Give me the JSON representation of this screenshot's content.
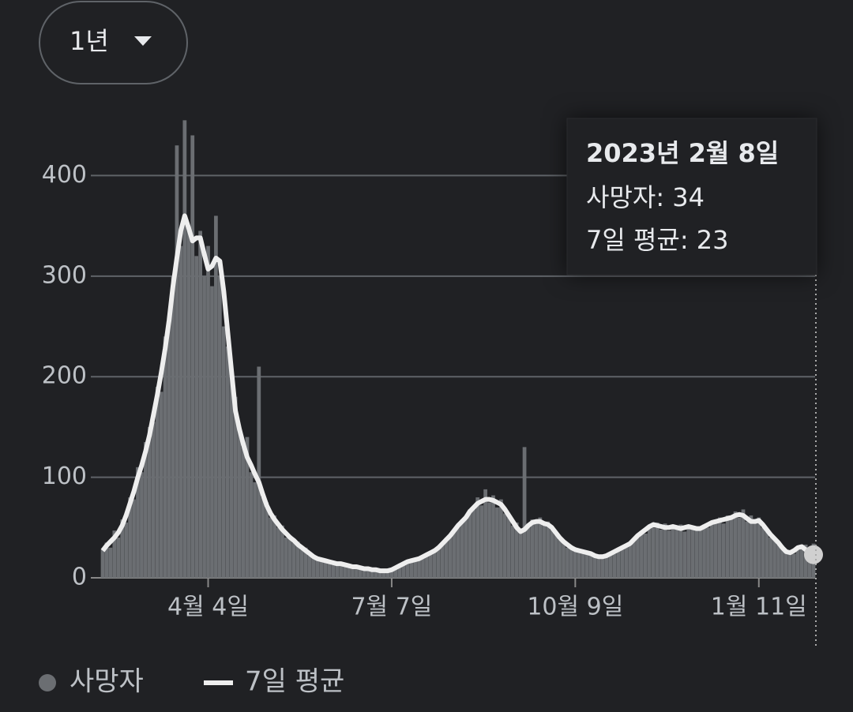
{
  "range_button": {
    "label": "1년"
  },
  "tooltip": {
    "title": "2023년 2월 8일",
    "lines": [
      "사망자: 34",
      "7일 평균: 23"
    ]
  },
  "chart_data": {
    "type": "bar",
    "categories": [
      null,
      null,
      null,
      null,
      null,
      null,
      null,
      null,
      null,
      null,
      null,
      null,
      null,
      null,
      null,
      null,
      null,
      null,
      null,
      null,
      null,
      null,
      null,
      null,
      null,
      null,
      null,
      "4월 4일",
      null,
      null,
      null,
      null,
      null,
      null,
      null,
      null,
      null,
      null,
      null,
      null,
      null,
      null,
      null,
      null,
      null,
      null,
      null,
      null,
      null,
      null,
      null,
      null,
      null,
      null,
      null,
      null,
      null,
      null,
      null,
      null,
      null,
      null,
      null,
      null,
      null,
      null,
      null,
      null,
      null,
      null,
      null,
      null,
      null,
      null,
      "7월 7일",
      null,
      null,
      null,
      null,
      null,
      null,
      null,
      null,
      null,
      null,
      null,
      null,
      null,
      null,
      null,
      null,
      null,
      null,
      null,
      null,
      null,
      null,
      null,
      null,
      null,
      null,
      null,
      null,
      null,
      null,
      null,
      null,
      null,
      null,
      null,
      null,
      null,
      null,
      null,
      null,
      null,
      null,
      null,
      null,
      null,
      null,
      "10월 9일",
      null,
      null,
      null,
      null,
      null,
      null,
      null,
      null,
      null,
      null,
      null,
      null,
      null,
      null,
      null,
      null,
      null,
      null,
      null,
      null,
      null,
      null,
      null,
      null,
      null,
      null,
      null,
      null,
      null,
      null,
      null,
      null,
      null,
      null,
      null,
      null,
      null,
      null,
      null,
      null,
      null,
      null,
      null,
      null,
      null,
      null,
      "1월 11일",
      null,
      null,
      null,
      null,
      null,
      null,
      null,
      null,
      null,
      null,
      null,
      null,
      null,
      null
    ],
    "series": [
      {
        "name": "사망자",
        "type": "bar",
        "color": "#6b6e72",
        "values": [
          28,
          35,
          30,
          47,
          40,
          58,
          55,
          80,
          78,
          110,
          105,
          135,
          150,
          155,
          190,
          185,
          240,
          260,
          300,
          430,
          330,
          455,
          350,
          440,
          320,
          345,
          300,
          330,
          290,
          360,
          300,
          250,
          230,
          200,
          180,
          150,
          130,
          140,
          105,
          95,
          210,
          80,
          75,
          60,
          62,
          50,
          52,
          40,
          42,
          35,
          36,
          28,
          30,
          22,
          23,
          18,
          20,
          16,
          17,
          14,
          15,
          13,
          14,
          12,
          12,
          10,
          11,
          9,
          10,
          8,
          9,
          7,
          8,
          7,
          9,
          11,
          12,
          15,
          15,
          18,
          17,
          20,
          22,
          22,
          26,
          26,
          31,
          33,
          40,
          40,
          48,
          50,
          58,
          58,
          68,
          68,
          80,
          72,
          88,
          75,
          82,
          70,
          78,
          64,
          60,
          52,
          55,
          45,
          130,
          50,
          58,
          55,
          60,
          52,
          56,
          48,
          44,
          38,
          37,
          30,
          32,
          26,
          28,
          24,
          27,
          22,
          23,
          20,
          22,
          21,
          25,
          24,
          29,
          28,
          33,
          32,
          38,
          40,
          46,
          44,
          52,
          50,
          55,
          48,
          54,
          47,
          52,
          49,
          53,
          46,
          52,
          48,
          51,
          47,
          53,
          50,
          56,
          55,
          60,
          54,
          62,
          58,
          66,
          60,
          68,
          56,
          62,
          55,
          60,
          50,
          46,
          40,
          38,
          33,
          32,
          26,
          27,
          24,
          28,
          29,
          33,
          28,
          34
        ]
      },
      {
        "name": "7일 평균",
        "type": "line",
        "color": "#eeeeee",
        "values": [
          27,
          32,
          36,
          40,
          45,
          52,
          62,
          74,
          86,
          100,
          112,
          126,
          142,
          162,
          182,
          204,
          228,
          256,
          290,
          318,
          345,
          360,
          348,
          335,
          338,
          338,
          322,
          307,
          310,
          318,
          315,
          285,
          245,
          205,
          166,
          148,
          133,
          120,
          112,
          103,
          95,
          83,
          72,
          64,
          58,
          53,
          48,
          44,
          40,
          37,
          33,
          30,
          27,
          24,
          21,
          19,
          18,
          17,
          16,
          15,
          14,
          14,
          13,
          12,
          11,
          11,
          10,
          9,
          9,
          8,
          8,
          7,
          7,
          7,
          8,
          10,
          12,
          14,
          16,
          17,
          18,
          19,
          21,
          23,
          25,
          27,
          30,
          34,
          38,
          42,
          47,
          52,
          56,
          60,
          66,
          70,
          74,
          76,
          78,
          78,
          77,
          75,
          73,
          68,
          62,
          56,
          50,
          46,
          48,
          52,
          55,
          56,
          56,
          54,
          53,
          50,
          45,
          40,
          36,
          33,
          30,
          28,
          27,
          26,
          25,
          24,
          22,
          21,
          21,
          22,
          24,
          26,
          28,
          30,
          32,
          34,
          38,
          42,
          45,
          48,
          51,
          53,
          52,
          51,
          50,
          50,
          51,
          50,
          49,
          50,
          51,
          50,
          49,
          49,
          51,
          53,
          55,
          56,
          57,
          58,
          59,
          60,
          62,
          63,
          62,
          59,
          56,
          56,
          57,
          53,
          48,
          43,
          39,
          35,
          30,
          26,
          25,
          27,
          30,
          31,
          28,
          25,
          23
        ]
      }
    ],
    "ylim": [
      0,
      460
    ],
    "yticks": [
      0,
      100,
      200,
      300,
      400
    ],
    "grid": true
  }
}
